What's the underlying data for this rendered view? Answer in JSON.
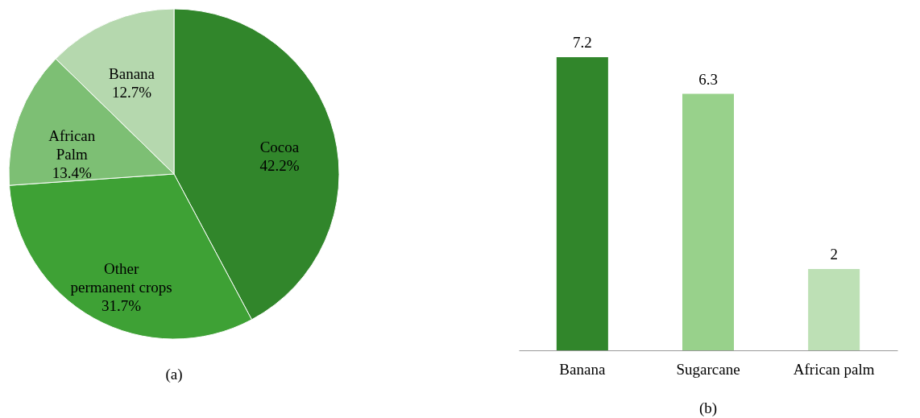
{
  "chart_data": [
    {
      "type": "pie",
      "categories": [
        "Cocoa",
        "Other permanent crops",
        "African Palm",
        "Banana"
      ],
      "values": [
        42.2,
        31.7,
        13.4,
        12.7
      ],
      "value_labels": [
        "42.2%",
        "31.7%",
        "13.4%",
        "12.7%"
      ],
      "colors": [
        "#31862b",
        "#3ea135",
        "#7dbf74",
        "#b5d8ae"
      ],
      "annotations": [
        "(a)"
      ],
      "legend": false
    },
    {
      "type": "bar",
      "categories": [
        "Banana",
        "Sugarcane",
        "African palm"
      ],
      "values": [
        7.2,
        6.3,
        2
      ],
      "colors": [
        "#31862b",
        "#98d18b",
        "#bde0b5"
      ],
      "data_labels": true,
      "annotations": [
        "(b)"
      ],
      "legend": false
    }
  ]
}
